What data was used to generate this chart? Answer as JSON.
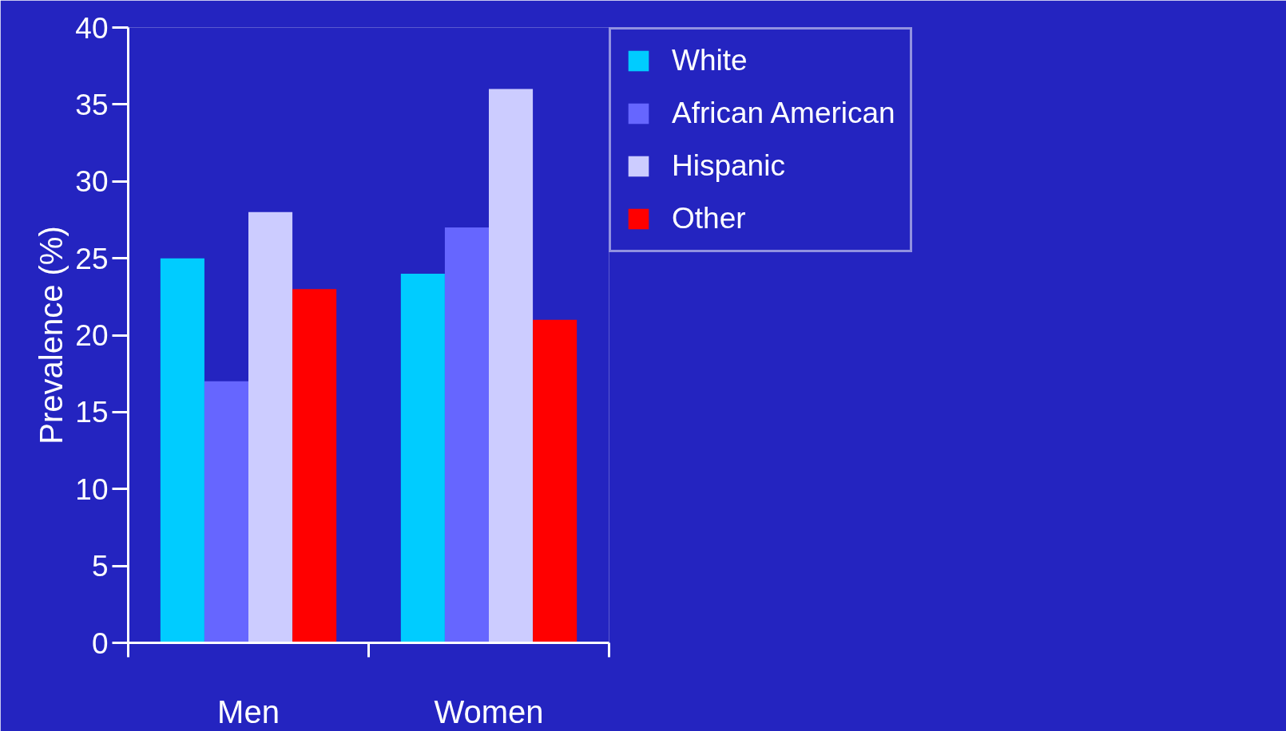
{
  "chart_data": {
    "type": "bar",
    "ylabel": "Prevalence (%)",
    "categories": [
      "Men",
      "Women"
    ],
    "series": [
      {
        "name": "White",
        "color": "#00ccff",
        "values": [
          25,
          24
        ]
      },
      {
        "name": "African American",
        "color": "#6666ff",
        "values": [
          17,
          27
        ]
      },
      {
        "name": "Hispanic",
        "color": "#ccccff",
        "values": [
          28,
          36
        ]
      },
      {
        "name": "Other",
        "color": "#ff0000",
        "values": [
          23,
          21
        ]
      }
    ],
    "ylim": [
      0,
      40
    ],
    "yticks": [
      0,
      5,
      10,
      15,
      20,
      25,
      30,
      35,
      40
    ],
    "grid": false,
    "legend": "top right"
  }
}
